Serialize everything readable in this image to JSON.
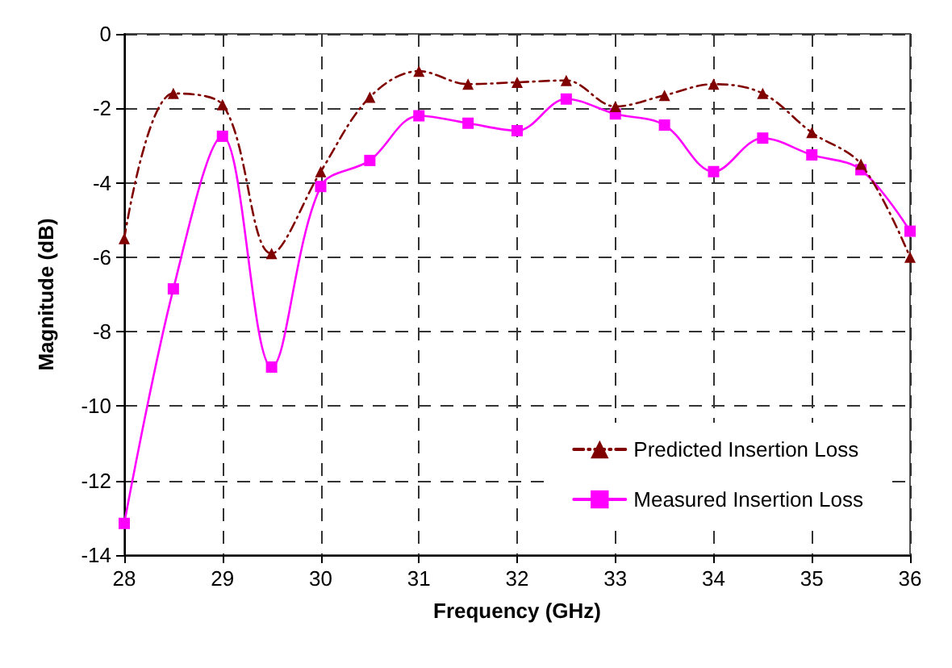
{
  "chart_data": {
    "type": "line",
    "xlabel": "Frequency (GHz)",
    "ylabel": "Magnitude (dB)",
    "x": [
      28,
      28.5,
      29,
      29.5,
      30,
      30.5,
      31,
      31.5,
      32,
      32.5,
      33,
      33.5,
      34,
      34.5,
      35,
      35.5,
      36
    ],
    "series": [
      {
        "name": "Predicted Insertion Loss",
        "color": "#800000",
        "marker": "triangle",
        "line_style": "dashed",
        "values": [
          -5.5,
          -1.6,
          -1.9,
          -5.9,
          -3.7,
          -1.7,
          -1.0,
          -1.35,
          -1.3,
          -1.25,
          -1.95,
          -1.65,
          -1.35,
          -1.6,
          -2.65,
          -3.5,
          -6.0
        ]
      },
      {
        "name": "Measured Insertion Loss",
        "color": "#ff00ff",
        "marker": "square",
        "line_style": "solid",
        "values": [
          -13.15,
          -6.85,
          -2.75,
          -8.95,
          -4.1,
          -3.4,
          -2.2,
          -2.4,
          -2.6,
          -1.75,
          -2.15,
          -2.45,
          -3.7,
          -2.8,
          -3.25,
          -3.65,
          -5.3
        ]
      }
    ],
    "xlim": [
      28,
      36
    ],
    "xticks": [
      28,
      29,
      30,
      31,
      32,
      33,
      34,
      35,
      36
    ],
    "ylim": [
      -14,
      0
    ],
    "yticks": [
      -14,
      -12,
      -10,
      -8,
      -6,
      -4,
      -2,
      0
    ],
    "grid": true,
    "legend": "bottom right"
  }
}
